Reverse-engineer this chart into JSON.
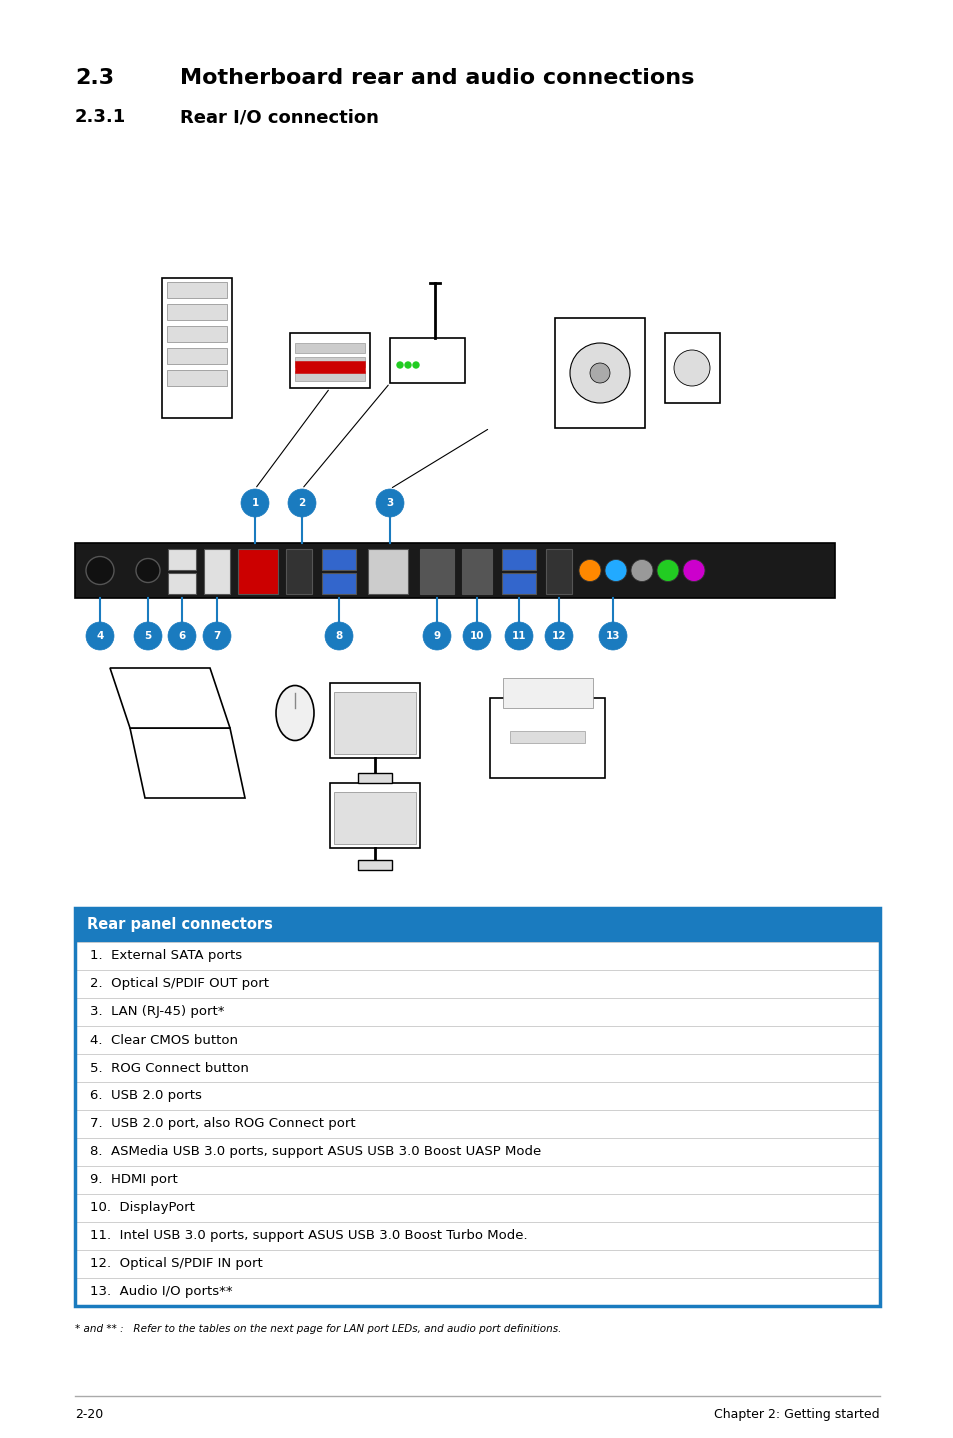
{
  "title_section": "2.3",
  "title_text": "Motherboard rear and audio connections",
  "subtitle_section": "2.3.1",
  "subtitle_text": "Rear I/O connection",
  "table_header": "Rear panel connectors",
  "table_header_bg": "#1a7bbf",
  "table_header_color": "#ffffff",
  "table_border_color": "#1a7bbf",
  "table_row_divider": "#cccccc",
  "table_items": [
    "1.  External SATA ports",
    "2.  Optical S/PDIF OUT port",
    "3.  LAN (RJ-45) port*",
    "4.  Clear CMOS button",
    "5.  ROG Connect button",
    "6.  USB 2.0 ports",
    "7.  USB 2.0 port, also ROG Connect port",
    "8.  ASMedia USB 3.0 ports, support ASUS USB 3.0 Boost UASP Mode",
    "9.  HDMI port",
    "10.  DisplayPort",
    "11.  Intel USB 3.0 ports, support ASUS USB 3.0 Boost Turbo Mode.",
    "12.  Optical S/PDIF IN port",
    "13.  Audio I/O ports**"
  ],
  "footnote": "* and ** :   Refer to the tables on the next page for LAN port LEDs, and audio port definitions.",
  "footer_left": "2-20",
  "footer_right": "Chapter 2: Getting started",
  "chapter_label": "Chapter 2",
  "chapter_tab_color": "#808080",
  "background_color": "#ffffff",
  "callout_color": "#1a7bbf",
  "bar_color": "#1a1a1a"
}
